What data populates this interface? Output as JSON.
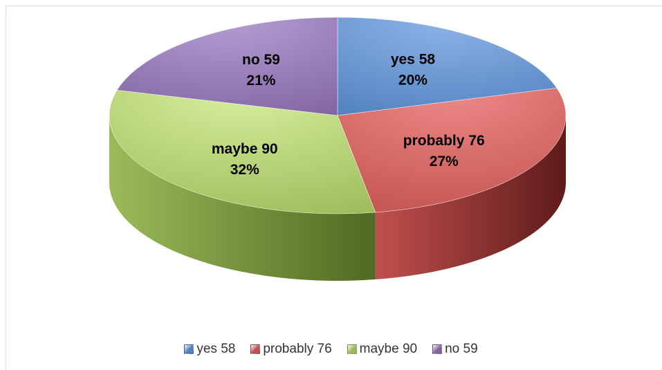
{
  "chart_data": {
    "type": "pie",
    "title": "",
    "style": "3d",
    "legend_position": "bottom",
    "categories": [
      "yes 58",
      "probably 76",
      "maybe 90",
      "no 59"
    ],
    "values": [
      58,
      76,
      90,
      59
    ],
    "labels": [
      {
        "name": "yes 58",
        "percent": "20%"
      },
      {
        "name": "probably 76",
        "percent": "27%"
      },
      {
        "name": "maybe 90",
        "percent": "32%"
      },
      {
        "name": "no 59",
        "percent": "21%"
      }
    ],
    "colors": {
      "yes 58": {
        "top": "#8fb4ea",
        "top_dark": "#4f81bd",
        "side": "#2f4f7a"
      },
      "probably 76": {
        "top": "#ee8a88",
        "top_dark": "#c0504d",
        "side": "#5e1b1a"
      },
      "maybe 90": {
        "top": "#d7ef9e",
        "top_dark": "#9bbb59",
        "side": "#4f6a22"
      },
      "no 59": {
        "top": "#b59ed4",
        "top_dark": "#8064a2",
        "side": "#3f2e57"
      }
    }
  },
  "legend": {
    "items": [
      {
        "label": "yes 58",
        "color": "#4f81bd"
      },
      {
        "label": "probably 76",
        "color": "#c0504d"
      },
      {
        "label": "maybe 90",
        "color": "#9bbb59"
      },
      {
        "label": "no 59",
        "color": "#8064a2"
      }
    ]
  }
}
